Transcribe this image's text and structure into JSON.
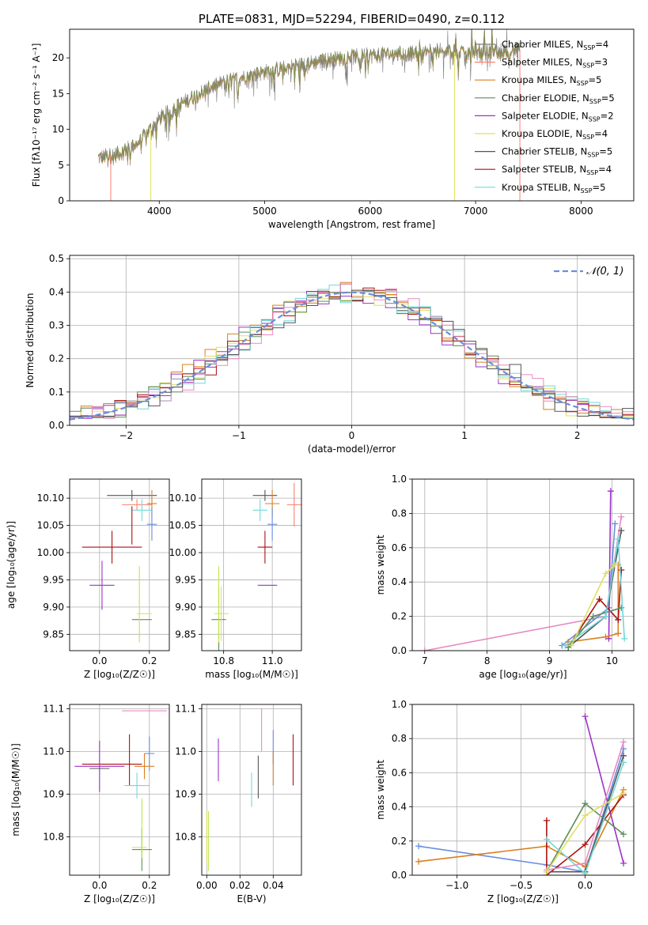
{
  "colors": {
    "Chabrier MILES": "#7f7f7f",
    "Salpeter MILES": "#ff7f6e",
    "Kroupa MILES": "#d97f22",
    "Chabrier ELODIE": "#5e8e5e",
    "Salpeter ELODIE": "#9b33c8",
    "Kroupa ELODIE": "#e0e060",
    "Chabrier STELIB": "#555555",
    "Salpeter STELIB": "#aa1111",
    "Kroupa STELIB": "#72d8d8",
    "extra_blue": "#6a8ee0",
    "extra_pink": "#e78ac3",
    "extra_lime": "#bde64a",
    "normal_curve": "#6a8ee0"
  },
  "chart_data": [
    {
      "panel": "spectrum",
      "type": "line",
      "title": "PLATE=0831, MJD=52294, FIBERID=0490, z=0.112",
      "xlabel": "wavelength [Angstrom, rest frame]",
      "ylabel": "Flux [fλ10⁻¹⁷ erg cm⁻² s⁻¹ A⁻¹]",
      "xlim": [
        3150,
        8500
      ],
      "ylim": [
        0,
        24
      ],
      "xticks": [
        4000,
        5000,
        6000,
        7000,
        8000
      ],
      "yticks": [
        0,
        5,
        10,
        15,
        20
      ],
      "legend_location": "top-right",
      "legend": [
        {
          "label": "Chabrier MILES, N",
          "sub": "SSP",
          "suffix": "=4"
        },
        {
          "label": "Salpeter MILES, N",
          "sub": "SSP",
          "suffix": "=3"
        },
        {
          "label": "Kroupa MILES, N",
          "sub": "SSP",
          "suffix": "=5"
        },
        {
          "label": "Chabrier ELODIE, N",
          "sub": "SSP",
          "suffix": "=5"
        },
        {
          "label": "Salpeter ELODIE, N",
          "sub": "SSP",
          "suffix": "=2"
        },
        {
          "label": "Kroupa ELODIE, N",
          "sub": "SSP",
          "suffix": "=4"
        },
        {
          "label": "Chabrier STELIB, N",
          "sub": "SSP",
          "suffix": "=5"
        },
        {
          "label": "Salpeter STELIB, N",
          "sub": "SSP",
          "suffix": "=4"
        },
        {
          "label": "Kroupa STELIB, N",
          "sub": "SSP",
          "suffix": "=5"
        }
      ],
      "continuum": {
        "x": [
          3420,
          3600,
          3800,
          4000,
          4200,
          4400,
          4600,
          4800,
          5000,
          5200,
          5400,
          5600,
          5800,
          6000,
          6200,
          6400,
          6600,
          6800,
          7000,
          7200,
          7420
        ],
        "y": [
          6.0,
          6.5,
          8.0,
          11.5,
          13.5,
          15.2,
          16.5,
          17.3,
          18.0,
          18.6,
          19.2,
          19.7,
          20.1,
          20.3,
          20.5,
          20.6,
          20.7,
          20.8,
          20.8,
          20.9,
          21.0
        ]
      },
      "drops": [
        {
          "series": "Salpeter MILES",
          "x": 3540
        },
        {
          "series": "Kroupa ELODIE",
          "x": 3920
        },
        {
          "series": "Kroupa ELODIE",
          "x": 6800
        },
        {
          "series": "Salpeter MILES",
          "x": 7420
        }
      ]
    },
    {
      "panel": "residuals",
      "type": "line",
      "xlabel": "(data-model)/error",
      "ylabel": "Normed distribution",
      "xlim": [
        -2.5,
        2.5
      ],
      "ylim": [
        0,
        0.51
      ],
      "xticks": [
        -2,
        -1,
        0,
        1,
        2
      ],
      "yticks": [
        0.0,
        0.1,
        0.2,
        0.3,
        0.4,
        0.5
      ],
      "legend": "𝒩(0, 1)",
      "legend_location": "top-right",
      "grid": true
    },
    {
      "panel": "age_vs_Z",
      "type": "scatter",
      "xlabel": "Z [log₁₀(Z/Z☉)]",
      "ylabel": "age  [log₁₀(age/yr)]",
      "xlim": [
        -0.12,
        0.28
      ],
      "ylim": [
        9.82,
        10.135
      ],
      "xticks": [
        0.0,
        0.2
      ],
      "yticks": [
        9.85,
        9.9,
        9.95,
        10.0,
        10.05,
        10.1
      ],
      "points": [
        {
          "series": "Chabrier STELIB",
          "x": 0.13,
          "y": 10.105,
          "xerr": 0.1,
          "yerr": 0.01
        },
        {
          "series": "Kroupa MILES",
          "x": 0.21,
          "y": 10.09,
          "xerr": 0.02,
          "yerr": 0.025
        },
        {
          "series": "Salpeter MILES",
          "x": 0.15,
          "y": 10.088,
          "xerr": 0.06,
          "yerr": 0.01
        },
        {
          "series": "Kroupa STELIB",
          "x": 0.17,
          "y": 10.078,
          "xerr": 0.04,
          "yerr": 0.02
        },
        {
          "series": "Salpeter STELIB",
          "x": 0.05,
          "y": 10.01,
          "xerr": 0.12,
          "yerr": 0.03
        },
        {
          "series": "Salpeter STELIB",
          "x": 0.13,
          "y": 10.05,
          "xerr": 0.0,
          "yerr": 0.035
        },
        {
          "series": "extra_blue",
          "x": 0.21,
          "y": 10.052,
          "xerr": 0.02,
          "yerr": 0.03
        },
        {
          "series": "Salpeter ELODIE",
          "x": 0.01,
          "y": 9.94,
          "xerr": 0.05,
          "yerr": 0.045
        },
        {
          "series": "Chabrier ELODIE",
          "x": 0.17,
          "y": 9.877,
          "xerr": 0.04,
          "yerr": 0.0
        },
        {
          "series": "extra_lime",
          "x": 0.16,
          "y": 9.905,
          "xerr": 0.0,
          "yerr": 0.07
        },
        {
          "series": "Kroupa ELODIE",
          "x": 0.18,
          "y": 9.888,
          "xerr": 0.03,
          "yerr": 0.0
        }
      ]
    },
    {
      "panel": "age_vs_mass",
      "type": "scatter",
      "xlabel": "mass [log₁₀(M/M☉)]",
      "ylabel": "",
      "xlim": [
        10.71,
        11.12
      ],
      "ylim": [
        9.82,
        10.135
      ],
      "xticks": [
        10.8,
        11.0
      ],
      "yticks": [
        9.85,
        9.9,
        9.95,
        10.0,
        10.05,
        10.1
      ],
      "points": [
        {
          "series": "Chabrier STELIB",
          "x": 10.97,
          "y": 10.105,
          "xerr": 0.05,
          "yerr": 0.01
        },
        {
          "series": "Kroupa MILES",
          "x": 11.0,
          "y": 10.09,
          "xerr": 0.03,
          "yerr": 0.025
        },
        {
          "series": "Salpeter MILES",
          "x": 11.09,
          "y": 10.088,
          "xerr": 0.03,
          "yerr": 0.04
        },
        {
          "series": "Kroupa STELIB",
          "x": 10.95,
          "y": 10.078,
          "xerr": 0.03,
          "yerr": 0.02
        },
        {
          "series": "extra_blue",
          "x": 11.0,
          "y": 10.052,
          "xerr": 0.02,
          "yerr": 0.03
        },
        {
          "series": "Salpeter STELIB",
          "x": 10.97,
          "y": 10.01,
          "xerr": 0.03,
          "yerr": 0.03
        },
        {
          "series": "Salpeter ELODIE",
          "x": 10.98,
          "y": 9.94,
          "xerr": 0.04,
          "yerr": 0.0
        },
        {
          "series": "Chabrier ELODIE",
          "x": 10.78,
          "y": 9.877,
          "xerr": 0.03,
          "yerr": 0.06
        },
        {
          "series": "Kroupa ELODIE",
          "x": 10.79,
          "y": 9.888,
          "xerr": 0.03,
          "yerr": 0.05
        },
        {
          "series": "extra_lime",
          "x": 10.78,
          "y": 9.905,
          "xerr": 0.0,
          "yerr": 0.07
        }
      ]
    },
    {
      "panel": "mass_weight_vs_age",
      "type": "line",
      "xlabel": "age  [log₁₀(age/yr)]",
      "ylabel": "mass weight",
      "xlim": [
        6.8,
        10.35
      ],
      "ylim": [
        0,
        1
      ],
      "xticks": [
        7,
        8,
        9,
        10
      ],
      "yticks": [
        0.0,
        0.2,
        0.4,
        0.6,
        0.8,
        1.0
      ],
      "grid": true,
      "series": [
        {
          "name": "extra_pink",
          "x": [
            7.0,
            9.9,
            10.15
          ],
          "y": [
            0.0,
            0.2,
            0.78
          ]
        },
        {
          "name": "extra_blue",
          "x": [
            9.2,
            9.95,
            10.05
          ],
          "y": [
            0.03,
            0.25,
            0.74
          ]
        },
        {
          "name": "Salpeter ELODIE",
          "x": [
            9.95,
            9.98
          ],
          "y": [
            0.07,
            0.93
          ]
        },
        {
          "name": "Kroupa MILES",
          "x": [
            9.3,
            9.9,
            10.1,
            10.1
          ],
          "y": [
            0.05,
            0.08,
            0.1,
            0.5
          ]
        },
        {
          "name": "Salpeter STELIB",
          "x": [
            9.3,
            9.8,
            10.1,
            10.15
          ],
          "y": [
            0.02,
            0.3,
            0.18,
            0.47
          ]
        },
        {
          "name": "Chabrier STELIB",
          "x": [
            9.3,
            9.9,
            10.15
          ],
          "y": [
            0.02,
            0.2,
            0.7
          ]
        },
        {
          "name": "Chabrier ELODIE",
          "x": [
            9.3,
            9.7,
            10.15
          ],
          "y": [
            0.02,
            0.2,
            0.25
          ]
        },
        {
          "name": "Kroupa STELIB",
          "x": [
            9.25,
            9.9,
            10.1,
            10.2
          ],
          "y": [
            0.03,
            0.2,
            0.65,
            0.07
          ]
        },
        {
          "name": "Kroupa ELODIE",
          "x": [
            9.35,
            9.9,
            10.05
          ],
          "y": [
            0.03,
            0.45,
            0.5
          ]
        }
      ]
    },
    {
      "panel": "mass_vs_Z",
      "type": "scatter",
      "xlabel": "Z [log₁₀(Z/Z☉)]",
      "ylabel": "mass [log₁₀(M/M☉)]",
      "xlim": [
        -0.12,
        0.28
      ],
      "ylim": [
        10.71,
        11.11
      ],
      "xticks": [
        0.0,
        0.2
      ],
      "yticks": [
        10.8,
        10.9,
        11.0,
        11.1
      ],
      "points": [
        {
          "series": "extra_pink",
          "x": 0.18,
          "y": 11.095,
          "xerr": 0.09,
          "yerr": 0.0
        },
        {
          "series": "extra_blue",
          "x": 0.2,
          "y": 10.995,
          "xerr": 0.02,
          "yerr": 0.04
        },
        {
          "series": "Salpeter STELIB",
          "x": 0.05,
          "y": 10.97,
          "xerr": 0.12,
          "yerr": 0.0
        },
        {
          "series": "Salpeter STELIB",
          "x": 0.12,
          "y": 10.98,
          "xerr": 0.0,
          "yerr": 0.06
        },
        {
          "series": "Kroupa MILES",
          "x": 0.18,
          "y": 10.965,
          "xerr": 0.04,
          "yerr": 0.03
        },
        {
          "series": "Salpeter ELODIE",
          "x": 0.0,
          "y": 10.965,
          "xerr": 0.1,
          "yerr": 0.06
        },
        {
          "series": "Chabrier STELIB",
          "x": 0.0,
          "y": 10.96,
          "xerr": 0.04,
          "yerr": 0.0
        },
        {
          "series": "Kroupa STELIB",
          "x": 0.15,
          "y": 10.92,
          "xerr": 0.05,
          "yerr": 0.03
        },
        {
          "series": "Chabrier ELODIE",
          "x": 0.17,
          "y": 10.77,
          "xerr": 0.04,
          "yerr": 0.05
        },
        {
          "series": "Kroupa ELODIE",
          "x": 0.16,
          "y": 10.775,
          "xerr": 0.03,
          "yerr": 0.0
        },
        {
          "series": "extra_lime",
          "x": 0.17,
          "y": 10.82,
          "xerr": 0.0,
          "yerr": 0.07
        }
      ]
    },
    {
      "panel": "mass_vs_EBV",
      "type": "scatter",
      "xlabel": "E(B-V)",
      "ylabel": "",
      "xlim": [
        -0.003,
        0.057
      ],
      "ylim": [
        10.71,
        11.11
      ],
      "xticks": [
        0.0,
        0.02,
        0.04
      ],
      "yticks": [
        10.8,
        10.9,
        11.0,
        11.1
      ],
      "points": [
        {
          "series": "extra_pink",
          "x": 0.033,
          "y": 11.05,
          "xerr": 0.0,
          "yerr": 0.05
        },
        {
          "series": "extra_blue",
          "x": 0.04,
          "y": 11.01,
          "xerr": 0.0,
          "yerr": 0.04
        },
        {
          "series": "Salpeter ELODIE",
          "x": 0.007,
          "y": 10.98,
          "xerr": 0.0,
          "yerr": 0.05
        },
        {
          "series": "Salpeter STELIB",
          "x": 0.052,
          "y": 10.98,
          "xerr": 0.0,
          "yerr": 0.06
        },
        {
          "series": "Kroupa MILES",
          "x": 0.04,
          "y": 10.96,
          "xerr": 0.0,
          "yerr": 0.04
        },
        {
          "series": "Chabrier STELIB",
          "x": 0.031,
          "y": 10.94,
          "xerr": 0.0,
          "yerr": 0.05
        },
        {
          "series": "Kroupa STELIB",
          "x": 0.027,
          "y": 10.91,
          "xerr": 0.0,
          "yerr": 0.04
        },
        {
          "series": "Kroupa ELODIE",
          "x": 0.0,
          "y": 10.8,
          "xerr": 0.0,
          "yerr": 0.06
        },
        {
          "series": "extra_lime",
          "x": 0.001,
          "y": 10.79,
          "xerr": 0.0,
          "yerr": 0.07
        }
      ]
    },
    {
      "panel": "mass_weight_vs_Z",
      "type": "line",
      "xlabel": "Z [log₁₀(Z/Z☉)]",
      "ylabel": "mass weight",
      "xlim": [
        -1.35,
        0.38
      ],
      "ylim": [
        0,
        1
      ],
      "xticks": [
        -1.0,
        -0.5,
        0.0
      ],
      "yticks": [
        0.0,
        0.2,
        0.4,
        0.6,
        0.8,
        1.0
      ],
      "grid": true,
      "series": [
        {
          "name": "extra_blue",
          "x": [
            -1.3,
            -0.3,
            0.0,
            0.3
          ],
          "y": [
            0.17,
            0.06,
            0.02,
            0.74
          ]
        },
        {
          "name": "Kroupa MILES",
          "x": [
            -1.3,
            -0.3,
            0.0,
            0.3
          ],
          "y": [
            0.08,
            0.17,
            0.05,
            0.5
          ]
        },
        {
          "name": "Salpeter ELODIE",
          "x": [
            0.0,
            0.3
          ],
          "y": [
            0.93,
            0.07
          ]
        },
        {
          "name": "Salpeter STELIB",
          "x": [
            -0.3,
            -0.3,
            0.0,
            0.3
          ],
          "y": [
            0.32,
            0.0,
            0.18,
            0.47
          ]
        },
        {
          "name": "Chabrier STELIB",
          "x": [
            -0.3,
            0.0,
            0.3
          ],
          "y": [
            0.02,
            0.02,
            0.7
          ]
        },
        {
          "name": "Chabrier ELODIE",
          "x": [
            -0.3,
            0.0,
            0.3
          ],
          "y": [
            0.02,
            0.42,
            0.24
          ]
        },
        {
          "name": "Kroupa STELIB",
          "x": [
            -0.3,
            0.0,
            0.3
          ],
          "y": [
            0.21,
            0.01,
            0.66
          ]
        },
        {
          "name": "extra_pink",
          "x": [
            -0.3,
            0.0,
            0.3
          ],
          "y": [
            0.03,
            0.07,
            0.78
          ]
        },
        {
          "name": "Kroupa ELODIE",
          "x": [
            -0.3,
            0.0,
            0.3
          ],
          "y": [
            0.02,
            0.35,
            0.48
          ]
        }
      ]
    }
  ]
}
